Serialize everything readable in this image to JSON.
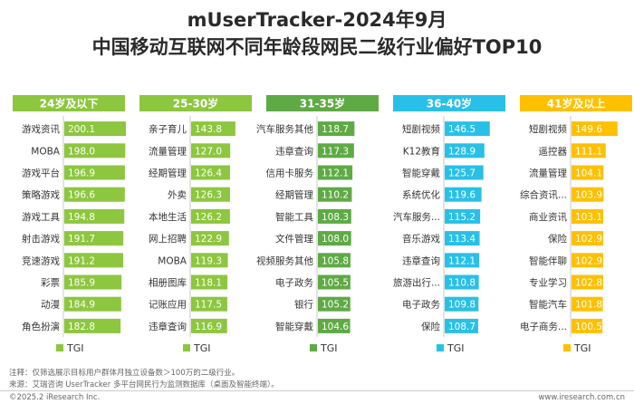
{
  "title_line1": "mUserTracker-2024年9月",
  "title_line2": "中国移动互联网不同年龄段网民二级行业偏好TOP10",
  "legend_label": "TGI",
  "notes": {
    "note": "注释：仅筛选展示目标用户群体月独立设备数＞100万的二级行业。",
    "source": "来源：艾瑞咨询 UserTracker 多平台网民行为监测数据库（桌面及智能终端）。"
  },
  "footer": {
    "copyright": "©2025.2 iResearch Inc.",
    "website": "www.iresearch.com.cn"
  },
  "chart_data": [
    {
      "type": "bar",
      "title": "24岁及以下",
      "color": "#8dc63f",
      "series": [
        {
          "name": "TGI",
          "values": [
            200.1,
            198.0,
            196.9,
            196.6,
            194.8,
            191.7,
            191.2,
            185.9,
            184.9,
            182.8
          ]
        }
      ],
      "categories": [
        "游戏资讯",
        "MOBA",
        "游戏平台",
        "策略游戏",
        "游戏工具",
        "射击游戏",
        "竞速游戏",
        "彩票",
        "动漫",
        "角色扮演"
      ]
    },
    {
      "type": "bar",
      "title": "25-30岁",
      "color": "#8dc63f",
      "series": [
        {
          "name": "TGI",
          "values": [
            143.8,
            127.0,
            126.4,
            126.3,
            126.2,
            122.9,
            119.3,
            118.1,
            117.5,
            116.9
          ]
        }
      ],
      "categories": [
        "亲子育儿",
        "流量管理",
        "经期管理",
        "外卖",
        "本地生活",
        "网上招聘",
        "MOBA",
        "相册图库",
        "记账应用",
        "违章查询"
      ]
    },
    {
      "type": "bar",
      "title": "31-35岁",
      "color": "#5faa45",
      "series": [
        {
          "name": "TGI",
          "values": [
            118.7,
            117.3,
            112.1,
            110.2,
            108.3,
            108.0,
            105.8,
            105.5,
            105.2,
            104.6
          ]
        }
      ],
      "categories": [
        "汽车服务其他",
        "违章查询",
        "信用卡服务",
        "经期管理",
        "智能工具",
        "文件管理",
        "视频服务其他",
        "电子政务",
        "银行",
        "智能穿戴"
      ]
    },
    {
      "type": "bar",
      "title": "36-40岁",
      "color": "#29c0e8",
      "series": [
        {
          "name": "TGI",
          "values": [
            146.5,
            128.9,
            125.7,
            119.6,
            115.2,
            113.4,
            112.1,
            110.8,
            109.8,
            108.7
          ]
        }
      ],
      "categories": [
        "短剧视频",
        "K12教育",
        "智能穿戴",
        "系统优化",
        "汽车服务...",
        "音乐游戏",
        "违章查询",
        "旅游出行...",
        "电子政务",
        "保险"
      ]
    },
    {
      "type": "bar",
      "title": "41岁及以上",
      "color": "#ffc000",
      "series": [
        {
          "name": "TGI",
          "values": [
            149.6,
            111.1,
            104.1,
            103.9,
            103.1,
            102.9,
            102.9,
            102.8,
            101.8,
            100.5
          ]
        }
      ],
      "categories": [
        "短剧视频",
        "遥控器",
        "流量管理",
        "综合资讯...",
        "商业资讯",
        "保险",
        "智能伴聊",
        "专业学习",
        "智能汽车",
        "电子商务..."
      ]
    }
  ]
}
